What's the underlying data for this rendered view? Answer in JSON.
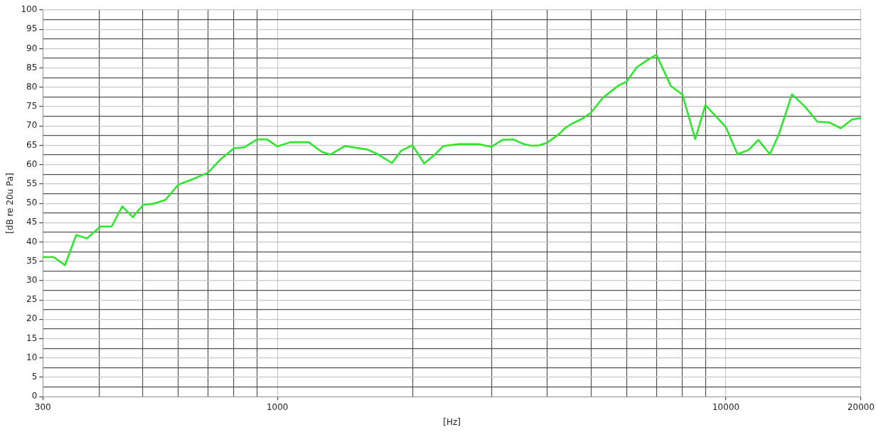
{
  "chart_data": {
    "type": "line",
    "xlabel": "[Hz]",
    "ylabel": "[dB re 20u Pa]",
    "log": "x",
    "grid": true,
    "legend": false,
    "marker": "none",
    "line_style": "solid",
    "xlim": [
      300,
      20000
    ],
    "ylim": [
      0,
      100
    ],
    "xticks": [
      300,
      {
        "value": 400,
        "label": null
      },
      {
        "value": 500,
        "label": null
      },
      {
        "value": 600,
        "label": null
      },
      {
        "value": 700,
        "label": null
      },
      {
        "value": 800,
        "label": null
      },
      {
        "value": 900,
        "label": null
      },
      1000,
      {
        "value": 2000,
        "label": null
      },
      {
        "value": 3000,
        "label": null
      },
      {
        "value": 4000,
        "label": null
      },
      {
        "value": 5000,
        "label": null
      },
      {
        "value": 6000,
        "label": null
      },
      {
        "value": 7000,
        "label": null
      },
      {
        "value": 8000,
        "label": null
      },
      {
        "value": 9000,
        "label": null
      },
      10000,
      20000
    ],
    "yticks": [
      0,
      {
        "value": 2.5,
        "label": null
      },
      5,
      {
        "value": 7.5,
        "label": null
      },
      10,
      {
        "value": 12.5,
        "label": null
      },
      15,
      {
        "value": 17.5,
        "label": null
      },
      20,
      {
        "value": 22.5,
        "label": null
      },
      25,
      {
        "value": 27.5,
        "label": null
      },
      30,
      {
        "value": 32.5,
        "label": null
      },
      35,
      {
        "value": 37.5,
        "label": null
      },
      40,
      {
        "value": 42.5,
        "label": null
      },
      45,
      {
        "value": 47.5,
        "label": null
      },
      50,
      {
        "value": 52.5,
        "label": null
      },
      55,
      {
        "value": 57.5,
        "label": null
      },
      60,
      {
        "value": 62.5,
        "label": null
      },
      65,
      {
        "value": 67.5,
        "label": null
      },
      70,
      {
        "value": 72.5,
        "label": null
      },
      75,
      {
        "value": 77.5,
        "label": null
      },
      80,
      {
        "value": 82.5,
        "label": null
      },
      85,
      {
        "value": 87.5,
        "label": null
      },
      90,
      {
        "value": 92.5,
        "label": null
      },
      95,
      {
        "value": 97.5,
        "label": null
      },
      100
    ],
    "series": [
      {
        "color": "#2ee62e",
        "x": [
          300,
          317,
          336,
          356,
          376,
          403,
          427,
          451,
          476,
          502,
          530,
          563,
          601,
          640,
          700,
          746,
          800,
          845,
          900,
          949,
          1000,
          1070,
          1174,
          1256,
          1312,
          1413,
          1589,
          1679,
          1801,
          1888,
          2000,
          2124,
          2245,
          2343,
          2539,
          2804,
          3000,
          3174,
          3355,
          3545,
          3679,
          3841,
          4000,
          4266,
          4373,
          4538,
          4769,
          5000,
          5328,
          5772,
          6000,
          6332,
          6735,
          7000,
          7530,
          8000,
          8540,
          9000,
          10000,
          10610,
          11240,
          11810,
          12530,
          13120,
          14040,
          15030,
          15990,
          17010,
          18040,
          19120,
          20000
        ],
        "values": [
          36.1,
          36.1,
          34.0,
          41.8,
          40.9,
          44.0,
          44.0,
          49.2,
          46.4,
          49.6,
          49.9,
          50.9,
          54.8,
          56.0,
          57.9,
          61.3,
          64.2,
          64.5,
          66.5,
          66.5,
          64.7,
          65.8,
          65.8,
          63.3,
          62.6,
          64.8,
          63.9,
          62.6,
          60.4,
          63.6,
          65.0,
          60.3,
          62.6,
          64.8,
          65.3,
          65.3,
          64.6,
          66.4,
          66.5,
          65.3,
          64.9,
          65.0,
          65.7,
          68.1,
          69.4,
          70.6,
          71.8,
          73.4,
          77.4,
          80.5,
          81.4,
          85.2,
          87.3,
          88.4,
          80.4,
          78.1,
          66.6,
          75.4,
          69.7,
          62.7,
          63.8,
          66.4,
          62.7,
          67.8,
          78.2,
          74.9,
          71.1,
          70.9,
          69.4,
          71.7,
          72.0
        ]
      }
    ]
  }
}
